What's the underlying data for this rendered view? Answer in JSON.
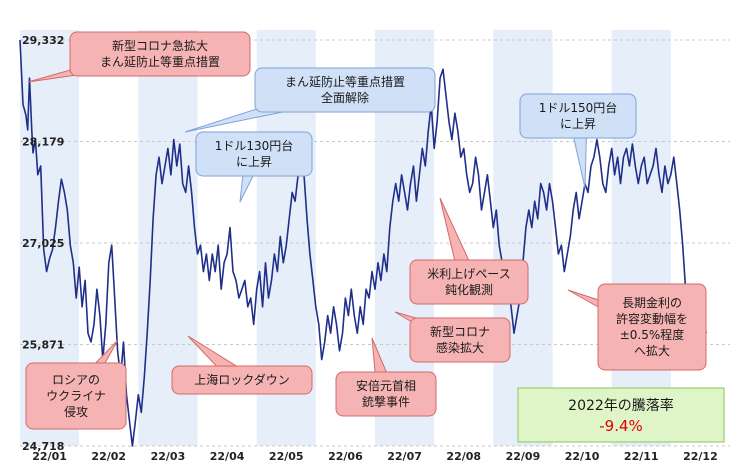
{
  "chart_data": {
    "type": "line",
    "title": "",
    "xlabel": "",
    "ylabel": "",
    "ylim": [
      24718,
      29332
    ],
    "y_ticks": [
      "29,332",
      "28,179",
      "27,025",
      "25,871",
      "24,718"
    ],
    "y_tick_values": [
      29332,
      28179,
      27025,
      25871,
      24718
    ],
    "x_tick_labels": [
      "22/01",
      "22/02",
      "22/03",
      "22/04",
      "22/05",
      "22/06",
      "22/07",
      "22/08",
      "22/09",
      "22/10",
      "22/11",
      "22/12"
    ],
    "grid": true,
    "month_shading": "alternating light-blue bands",
    "series": [
      {
        "color": "#1f2f8a",
        "points": [
          [
            0.0,
            29332
          ],
          [
            0.05,
            28600
          ],
          [
            0.1,
            28480
          ],
          [
            0.13,
            28310
          ],
          [
            0.16,
            28900
          ],
          [
            0.2,
            28300
          ],
          [
            0.22,
            28050
          ],
          [
            0.26,
            28200
          ],
          [
            0.3,
            27800
          ],
          [
            0.35,
            27900
          ],
          [
            0.4,
            26950
          ],
          [
            0.45,
            26700
          ],
          [
            0.5,
            26850
          ],
          [
            0.55,
            26950
          ],
          [
            0.6,
            27200
          ],
          [
            0.65,
            27500
          ],
          [
            0.7,
            27750
          ],
          [
            0.75,
            27600
          ],
          [
            0.8,
            27400
          ],
          [
            0.85,
            27000
          ],
          [
            0.9,
            26800
          ],
          [
            0.95,
            26400
          ],
          [
            1.0,
            26750
          ],
          [
            1.05,
            26300
          ],
          [
            1.1,
            26600
          ],
          [
            1.15,
            26000
          ],
          [
            1.2,
            25900
          ],
          [
            1.25,
            26100
          ],
          [
            1.3,
            26500
          ],
          [
            1.35,
            26200
          ],
          [
            1.4,
            25700
          ],
          [
            1.45,
            26100
          ],
          [
            1.5,
            26800
          ],
          [
            1.55,
            27000
          ],
          [
            1.6,
            26400
          ],
          [
            1.65,
            25800
          ],
          [
            1.7,
            25500
          ],
          [
            1.75,
            25900
          ],
          [
            1.8,
            25300
          ],
          [
            1.85,
            25000
          ],
          [
            1.9,
            24718
          ],
          [
            1.95,
            25000
          ],
          [
            2.0,
            25300
          ],
          [
            2.05,
            25100
          ],
          [
            2.1,
            25500
          ],
          [
            2.15,
            26000
          ],
          [
            2.2,
            26600
          ],
          [
            2.25,
            27300
          ],
          [
            2.3,
            27800
          ],
          [
            2.35,
            28000
          ],
          [
            2.4,
            27700
          ],
          [
            2.45,
            27900
          ],
          [
            2.5,
            28100
          ],
          [
            2.55,
            27800
          ],
          [
            2.6,
            28200
          ],
          [
            2.65,
            27900
          ],
          [
            2.7,
            28150
          ],
          [
            2.75,
            27700
          ],
          [
            2.8,
            27600
          ],
          [
            2.85,
            27900
          ],
          [
            2.9,
            27600
          ],
          [
            2.95,
            27200
          ],
          [
            3.0,
            26900
          ],
          [
            3.05,
            27000
          ],
          [
            3.1,
            26700
          ],
          [
            3.15,
            26900
          ],
          [
            3.2,
            26600
          ],
          [
            3.25,
            26900
          ],
          [
            3.3,
            26700
          ],
          [
            3.35,
            27000
          ],
          [
            3.4,
            26500
          ],
          [
            3.45,
            26800
          ],
          [
            3.5,
            26900
          ],
          [
            3.55,
            27200
          ],
          [
            3.6,
            26700
          ],
          [
            3.65,
            26600
          ],
          [
            3.7,
            26400
          ],
          [
            3.75,
            26500
          ],
          [
            3.8,
            26600
          ],
          [
            3.85,
            26300
          ],
          [
            3.9,
            26400
          ],
          [
            3.95,
            26100
          ],
          [
            4.0,
            26500
          ],
          [
            4.05,
            26700
          ],
          [
            4.1,
            26300
          ],
          [
            4.15,
            26800
          ],
          [
            4.2,
            26400
          ],
          [
            4.25,
            26600
          ],
          [
            4.3,
            26900
          ],
          [
            4.35,
            26700
          ],
          [
            4.4,
            27100
          ],
          [
            4.45,
            26800
          ],
          [
            4.5,
            27000
          ],
          [
            4.55,
            27300
          ],
          [
            4.6,
            27600
          ],
          [
            4.65,
            27500
          ],
          [
            4.7,
            27800
          ],
          [
            4.75,
            28000
          ],
          [
            4.8,
            27800
          ],
          [
            4.85,
            27300
          ],
          [
            4.9,
            26900
          ],
          [
            4.95,
            26600
          ],
          [
            5.0,
            26300
          ],
          [
            5.05,
            26100
          ],
          [
            5.1,
            25700
          ],
          [
            5.15,
            25900
          ],
          [
            5.2,
            26200
          ],
          [
            5.25,
            26000
          ],
          [
            5.3,
            26300
          ],
          [
            5.35,
            26100
          ],
          [
            5.4,
            25800
          ],
          [
            5.45,
            26000
          ],
          [
            5.5,
            26400
          ],
          [
            5.55,
            26200
          ],
          [
            5.6,
            26500
          ],
          [
            5.65,
            26200
          ],
          [
            5.7,
            26000
          ],
          [
            5.75,
            26300
          ],
          [
            5.8,
            26100
          ],
          [
            5.85,
            26500
          ],
          [
            5.9,
            26400
          ],
          [
            5.95,
            26700
          ],
          [
            6.0,
            26500
          ],
          [
            6.05,
            26800
          ],
          [
            6.1,
            26600
          ],
          [
            6.15,
            26900
          ],
          [
            6.2,
            26700
          ],
          [
            6.25,
            27200
          ],
          [
            6.3,
            27500
          ],
          [
            6.35,
            27700
          ],
          [
            6.4,
            27500
          ],
          [
            6.45,
            27800
          ],
          [
            6.5,
            27600
          ],
          [
            6.55,
            27400
          ],
          [
            6.6,
            27700
          ],
          [
            6.65,
            27900
          ],
          [
            6.7,
            27500
          ],
          [
            6.75,
            27800
          ],
          [
            6.8,
            28100
          ],
          [
            6.85,
            27900
          ],
          [
            6.9,
            28300
          ],
          [
            6.95,
            28600
          ],
          [
            7.0,
            28100
          ],
          [
            7.05,
            28400
          ],
          [
            7.1,
            28900
          ],
          [
            7.15,
            29000
          ],
          [
            7.2,
            28700
          ],
          [
            7.25,
            28400
          ],
          [
            7.3,
            28200
          ],
          [
            7.35,
            28500
          ],
          [
            7.4,
            28300
          ],
          [
            7.45,
            28000
          ],
          [
            7.5,
            28100
          ],
          [
            7.55,
            27800
          ],
          [
            7.6,
            27600
          ],
          [
            7.65,
            27700
          ],
          [
            7.7,
            28000
          ],
          [
            7.75,
            27800
          ],
          [
            7.8,
            27400
          ],
          [
            7.85,
            27600
          ],
          [
            7.9,
            27800
          ],
          [
            7.95,
            27500
          ],
          [
            8.0,
            27200
          ],
          [
            8.05,
            27400
          ],
          [
            8.1,
            27000
          ],
          [
            8.15,
            26800
          ],
          [
            8.2,
            26700
          ],
          [
            8.25,
            26500
          ],
          [
            8.3,
            26300
          ],
          [
            8.35,
            26000
          ],
          [
            8.4,
            26200
          ],
          [
            8.45,
            26400
          ],
          [
            8.5,
            26800
          ],
          [
            8.55,
            27200
          ],
          [
            8.6,
            27400
          ],
          [
            8.65,
            27200
          ],
          [
            8.7,
            27500
          ],
          [
            8.75,
            27300
          ],
          [
            8.8,
            27700
          ],
          [
            8.85,
            27600
          ],
          [
            8.9,
            27400
          ],
          [
            8.95,
            27700
          ],
          [
            9.0,
            27500
          ],
          [
            9.05,
            27200
          ],
          [
            9.1,
            26900
          ],
          [
            9.15,
            27000
          ],
          [
            9.2,
            26700
          ],
          [
            9.25,
            26900
          ],
          [
            9.3,
            27100
          ],
          [
            9.35,
            27400
          ],
          [
            9.4,
            27600
          ],
          [
            9.45,
            27300
          ],
          [
            9.5,
            27500
          ],
          [
            9.55,
            27700
          ],
          [
            9.6,
            27600
          ],
          [
            9.65,
            27900
          ],
          [
            9.7,
            28000
          ],
          [
            9.75,
            28200
          ],
          [
            9.8,
            28000
          ],
          [
            9.85,
            27700
          ],
          [
            9.9,
            27600
          ],
          [
            9.95,
            27900
          ],
          [
            10.0,
            28100
          ],
          [
            10.05,
            27800
          ],
          [
            10.1,
            28000
          ],
          [
            10.15,
            27700
          ],
          [
            10.2,
            28000
          ],
          [
            10.25,
            28100
          ],
          [
            10.3,
            27900
          ],
          [
            10.35,
            28150
          ],
          [
            10.4,
            27900
          ],
          [
            10.45,
            27700
          ],
          [
            10.5,
            27900
          ],
          [
            10.55,
            28000
          ],
          [
            10.6,
            27700
          ],
          [
            10.65,
            27800
          ],
          [
            10.7,
            27900
          ],
          [
            10.75,
            28100
          ],
          [
            10.8,
            27800
          ],
          [
            10.85,
            27600
          ],
          [
            10.9,
            27900
          ],
          [
            10.95,
            27700
          ],
          [
            11.0,
            27800
          ],
          [
            11.05,
            28000
          ],
          [
            11.1,
            27700
          ],
          [
            11.15,
            27400
          ],
          [
            11.2,
            27000
          ],
          [
            11.25,
            26500
          ],
          [
            11.3,
            26300
          ],
          [
            11.35,
            26200
          ],
          [
            11.4,
            26400
          ],
          [
            11.45,
            26200
          ],
          [
            11.5,
            26300
          ],
          [
            11.55,
            26100
          ],
          [
            11.6,
            26000
          ]
        ]
      }
    ],
    "annotations": [
      {
        "id": "omicron",
        "lines": [
          "新型コロナ急拡大",
          "まん延防止等重点措置"
        ],
        "color": "red"
      },
      {
        "id": "lift",
        "lines": [
          "まん延防止等重点措置",
          "全面解除"
        ],
        "color": "blue"
      },
      {
        "id": "yen130",
        "lines": [
          "1ドル130円台",
          "に上昇"
        ],
        "color": "blue"
      },
      {
        "id": "yen150",
        "lines": [
          "1ドル150円台",
          "に上昇"
        ],
        "color": "blue"
      },
      {
        "id": "fedpace",
        "lines": [
          "米利上げペース",
          "鈍化観測"
        ],
        "color": "red"
      },
      {
        "id": "covidsurge",
        "lines": [
          "新型コロナ",
          "感染拡大"
        ],
        "color": "red"
      },
      {
        "id": "boj",
        "lines": [
          "長期金利の",
          "許容変動幅を",
          "±0.5%程度",
          "へ拡大"
        ],
        "color": "red"
      },
      {
        "id": "russia",
        "lines": [
          "ロシアの",
          "ウクライナ",
          "侵攻"
        ],
        "color": "red"
      },
      {
        "id": "shanghai",
        "lines": [
          "上海ロックダウン"
        ],
        "color": "red"
      },
      {
        "id": "abe",
        "lines": [
          "安倍元首相",
          "銃撃事件"
        ],
        "color": "red"
      }
    ],
    "summary": {
      "title": "2022年の騰落率",
      "value": "-9.4%"
    },
    "colors": {
      "line": "#1f2f8a",
      "band": "#e6eefa",
      "red_fill": "#f6b3b3",
      "red_stroke": "#d26a6a",
      "blue_fill": "#cfe0f7",
      "blue_stroke": "#7fa3d6",
      "summary_fill": "#dff5c8",
      "summary_stroke": "#9ccf6a"
    }
  }
}
